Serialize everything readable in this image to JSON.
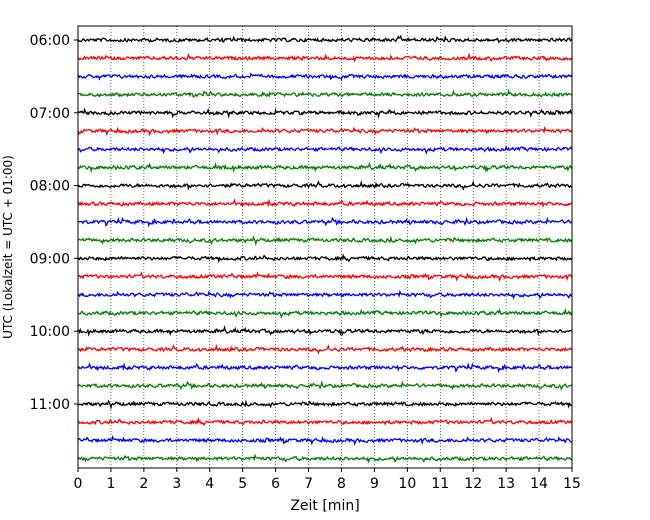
{
  "chart_data": {
    "type": "line",
    "xlabel": "Zeit  [min]",
    "ylabel": "UTC (Lokalzeit = UTC + 01:00)",
    "xlim": [
      0,
      15
    ],
    "x_ticks": [
      "0",
      "1",
      "2",
      "3",
      "4",
      "5",
      "6",
      "7",
      "8",
      "9",
      "10",
      "11",
      "12",
      "13",
      "14",
      "15"
    ],
    "y_ticks": [
      {
        "label": "06:00",
        "trace_index": 0
      },
      {
        "label": "07:00",
        "trace_index": 4
      },
      {
        "label": "08:00",
        "trace_index": 8
      },
      {
        "label": "09:00",
        "trace_index": 12
      },
      {
        "label": "10:00",
        "trace_index": 16
      },
      {
        "label": "11:00",
        "trace_index": 20
      }
    ],
    "trace_count": 24,
    "trace_interval_minutes": 15,
    "trace_colors": [
      "#000000",
      "#ff0000",
      "#0000ff",
      "#008000"
    ],
    "grid": {
      "vertical": true,
      "style": "dotted"
    }
  }
}
